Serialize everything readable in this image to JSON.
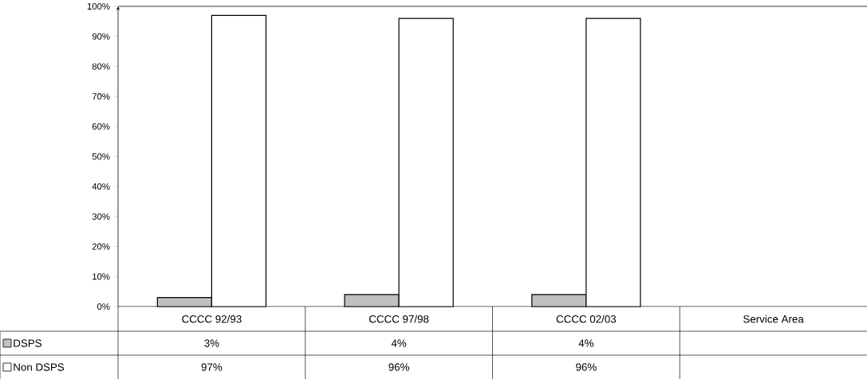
{
  "chart_data": {
    "type": "bar",
    "categories": [
      "CCCC 92/93",
      "CCCC 97/98",
      "CCCC 02/03",
      "Service Area"
    ],
    "series": [
      {
        "name": "DSPS",
        "color": "#c0c0c0",
        "values": [
          3,
          4,
          4,
          null
        ],
        "value_labels": [
          "3%",
          "4%",
          "4%",
          null
        ]
      },
      {
        "name": "Non DSPS",
        "color": "#ffffff",
        "values": [
          97,
          96,
          96,
          null
        ],
        "value_labels": [
          "97%",
          "96%",
          "96%",
          null
        ]
      }
    ],
    "ylim": [
      0,
      100
    ],
    "yticks": [
      {
        "value": 0,
        "label": "0%"
      },
      {
        "value": 10,
        "label": "10%"
      },
      {
        "value": 20,
        "label": "20%"
      },
      {
        "value": 30,
        "label": "30%"
      },
      {
        "value": 40,
        "label": "40%"
      },
      {
        "value": 50,
        "label": "50%"
      },
      {
        "value": 60,
        "label": "60%"
      },
      {
        "value": 70,
        "label": "70%"
      },
      {
        "value": 80,
        "label": "80%"
      },
      {
        "value": 90,
        "label": "90%"
      },
      {
        "value": 100,
        "label": "100%"
      }
    ],
    "legend": "bottom left"
  }
}
